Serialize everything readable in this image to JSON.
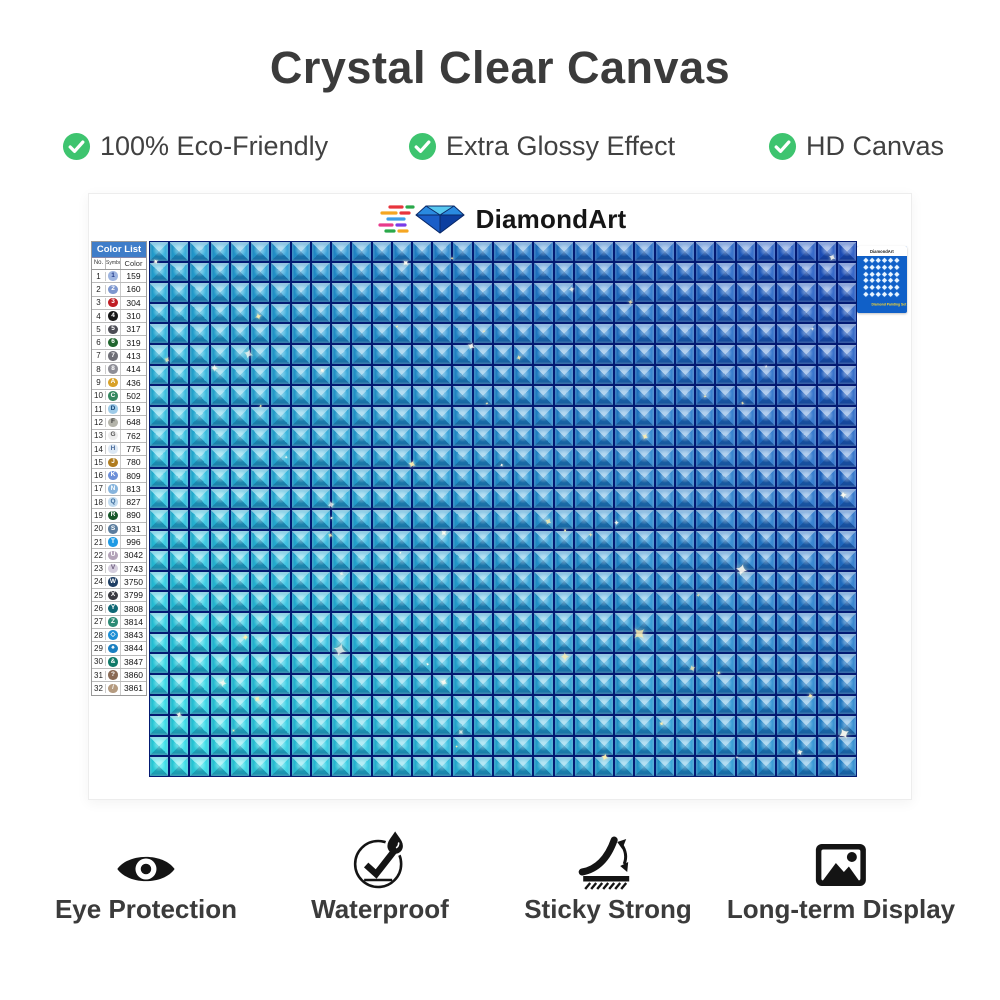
{
  "title": "Crystal Clear Canvas",
  "colors": {
    "check_green": "#3ec46f",
    "canvas_cyan": "#2be4ea",
    "canvas_blue": "#2055c5",
    "canvas_groove": "#031a72"
  },
  "features": [
    {
      "icon": "check-circle-icon",
      "label": "100% Eco-Friendly"
    },
    {
      "icon": "check-circle-icon",
      "label": "Extra Glossy Effect"
    },
    {
      "icon": "check-circle-icon",
      "label": "HD Canvas"
    }
  ],
  "poster": {
    "logo_text": "DiamondArt",
    "color_list": {
      "title": "Color List",
      "columns": [
        "No.",
        "Symbol",
        "Color"
      ],
      "rows": [
        {
          "no": "1",
          "symbol": "1",
          "code": "159",
          "bg": "#9db4e0",
          "fg": "#223a8a"
        },
        {
          "no": "2",
          "symbol": "2",
          "code": "160",
          "bg": "#7d97cf",
          "fg": "#ffffff"
        },
        {
          "no": "3",
          "symbol": "3",
          "code": "304",
          "bg": "#c01d24",
          "fg": "#ffffff"
        },
        {
          "no": "4",
          "symbol": "4",
          "code": "310",
          "bg": "#151515",
          "fg": "#ffffff"
        },
        {
          "no": "5",
          "symbol": "5",
          "code": "317",
          "bg": "#4d4d55",
          "fg": "#ffffff"
        },
        {
          "no": "6",
          "symbol": "6",
          "code": "319",
          "bg": "#20662e",
          "fg": "#ffffff"
        },
        {
          "no": "7",
          "symbol": "7",
          "code": "413",
          "bg": "#6e6e76",
          "fg": "#ffffff"
        },
        {
          "no": "8",
          "symbol": "8",
          "code": "414",
          "bg": "#8e8e96",
          "fg": "#ffffff"
        },
        {
          "no": "9",
          "symbol": "A",
          "code": "436",
          "bg": "#d8a127",
          "fg": "#ffffff"
        },
        {
          "no": "10",
          "symbol": "C",
          "code": "502",
          "bg": "#35875f",
          "fg": "#ffffff"
        },
        {
          "no": "11",
          "symbol": "D",
          "code": "519",
          "bg": "#9ecbe8",
          "fg": "#1a4a7a"
        },
        {
          "no": "12",
          "symbol": "F",
          "code": "648",
          "bg": "#b4b4aa",
          "fg": "#3a3a3a"
        },
        {
          "no": "13",
          "symbol": "G",
          "code": "762",
          "bg": "#ececec",
          "fg": "#555555"
        },
        {
          "no": "14",
          "symbol": "H",
          "code": "775",
          "bg": "#dce8f4",
          "fg": "#4a6a9a"
        },
        {
          "no": "15",
          "symbol": "J",
          "code": "780",
          "bg": "#b07c1e",
          "fg": "#ffffff"
        },
        {
          "no": "16",
          "symbol": "K",
          "code": "809",
          "bg": "#6d8fd8",
          "fg": "#ffffff"
        },
        {
          "no": "17",
          "symbol": "N",
          "code": "813",
          "bg": "#86b4dd",
          "fg": "#ffffff"
        },
        {
          "no": "18",
          "symbol": "Q",
          "code": "827",
          "bg": "#c2dcf0",
          "fg": "#3a6a9a"
        },
        {
          "no": "19",
          "symbol": "R",
          "code": "890",
          "bg": "#17572a",
          "fg": "#ffffff"
        },
        {
          "no": "20",
          "symbol": "S",
          "code": "931",
          "bg": "#5b7d9e",
          "fg": "#ffffff"
        },
        {
          "no": "21",
          "symbol": "T",
          "code": "996",
          "bg": "#1e9ae4",
          "fg": "#ffffff"
        },
        {
          "no": "22",
          "symbol": "U",
          "code": "3042",
          "bg": "#b3a3b8",
          "fg": "#ffffff"
        },
        {
          "no": "23",
          "symbol": "V",
          "code": "3743",
          "bg": "#d5cede",
          "fg": "#6a5a7a"
        },
        {
          "no": "24",
          "symbol": "W",
          "code": "3750",
          "bg": "#1d3d63",
          "fg": "#ffffff"
        },
        {
          "no": "25",
          "symbol": "X",
          "code": "3799",
          "bg": "#3b3b42",
          "fg": "#ffffff"
        },
        {
          "no": "26",
          "symbol": "Y",
          "code": "3808",
          "bg": "#0f6875",
          "fg": "#ffffff"
        },
        {
          "no": "27",
          "symbol": "Z",
          "code": "3814",
          "bg": "#2a8a74",
          "fg": "#ffffff"
        },
        {
          "no": "28",
          "symbol": "◇",
          "code": "3843",
          "bg": "#1e8fd5",
          "fg": "#ffffff"
        },
        {
          "no": "29",
          "symbol": "♠",
          "code": "3844",
          "bg": "#1a7fc0",
          "fg": "#ffffff"
        },
        {
          "no": "30",
          "symbol": "&",
          "code": "3847",
          "bg": "#0e7a68",
          "fg": "#ffffff"
        },
        {
          "no": "31",
          "symbol": "?",
          "code": "3860",
          "bg": "#8a6a55",
          "fg": "#ffffff"
        },
        {
          "no": "32",
          "symbol": "/",
          "code": "3861",
          "bg": "#b59b80",
          "fg": "#ffffff"
        }
      ]
    },
    "canvas": {
      "cols": 35,
      "rows": 26
    },
    "package_thumb": {
      "brand": "DiamondArt",
      "caption": "Diamond Painting Set"
    }
  },
  "bottom_features": [
    {
      "icon": "eye-icon",
      "label": "Eye Protection"
    },
    {
      "icon": "waterproof-icon",
      "label": "Waterproof"
    },
    {
      "icon": "sticky-icon",
      "label": "Sticky Strong"
    },
    {
      "icon": "picture-icon",
      "label": "Long-term Display"
    }
  ]
}
